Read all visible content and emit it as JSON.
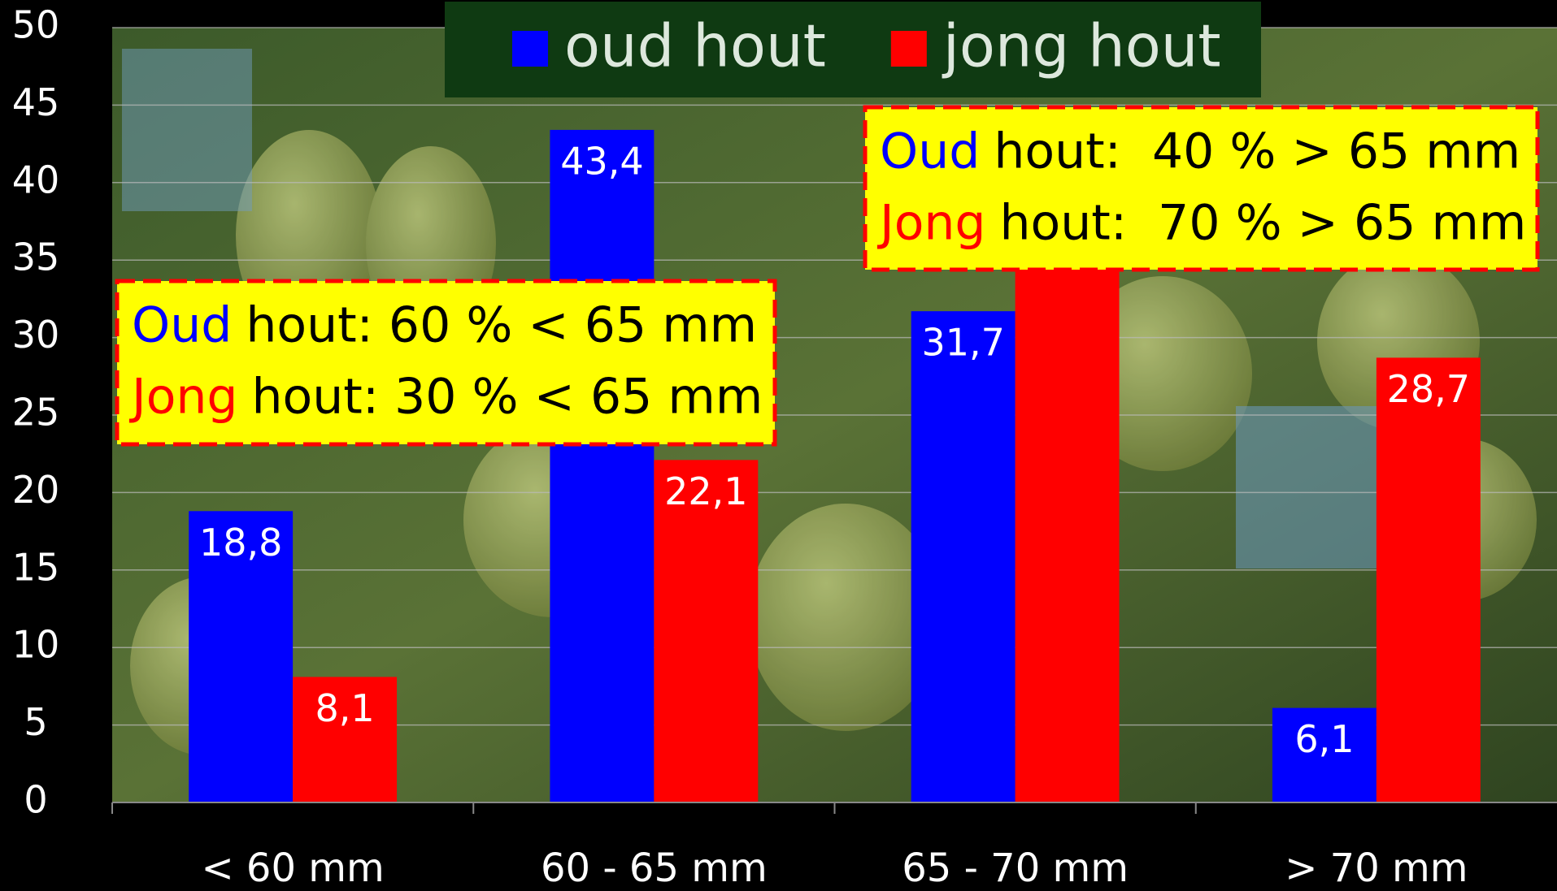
{
  "chart_data": {
    "type": "bar",
    "categories": [
      "< 60 mm",
      "60 - 65 mm",
      "65 - 70 mm",
      "> 70 mm"
    ],
    "series": [
      {
        "name": "oud hout",
        "color": "#0000ff",
        "values": [
          18.8,
          43.4,
          31.7,
          6.1
        ],
        "value_labels": [
          "18,8",
          "43,4",
          "31,7",
          "6,1"
        ]
      },
      {
        "name": "jong hout",
        "color": "#ff0000",
        "values": [
          8.1,
          22.1,
          34.4,
          28.7
        ],
        "value_labels": [
          "8,1",
          "22,1",
          null,
          "28,7"
        ]
      }
    ],
    "ylim": [
      0,
      50
    ],
    "yticks": [
      0,
      5,
      10,
      15,
      20,
      25,
      30,
      35,
      40,
      45,
      50
    ],
    "grid": true,
    "legend": "top",
    "annotations": [
      {
        "lines": [
          {
            "lead": "Oud",
            "lead_color": "#0000ff",
            "rest": "hout: 60 % < 65 mm"
          },
          {
            "lead": "Jong",
            "lead_color": "#ff0000",
            "rest": "hout: 30 % < 65 mm"
          }
        ]
      },
      {
        "lines": [
          {
            "lead": "Oud",
            "lead_color": "#0000ff",
            "rest": "hout:  40 % > 65 mm"
          },
          {
            "lead": "Jong",
            "lead_color": "#ff0000",
            "rest": "hout:  70 % > 65 mm"
          }
        ]
      }
    ]
  }
}
